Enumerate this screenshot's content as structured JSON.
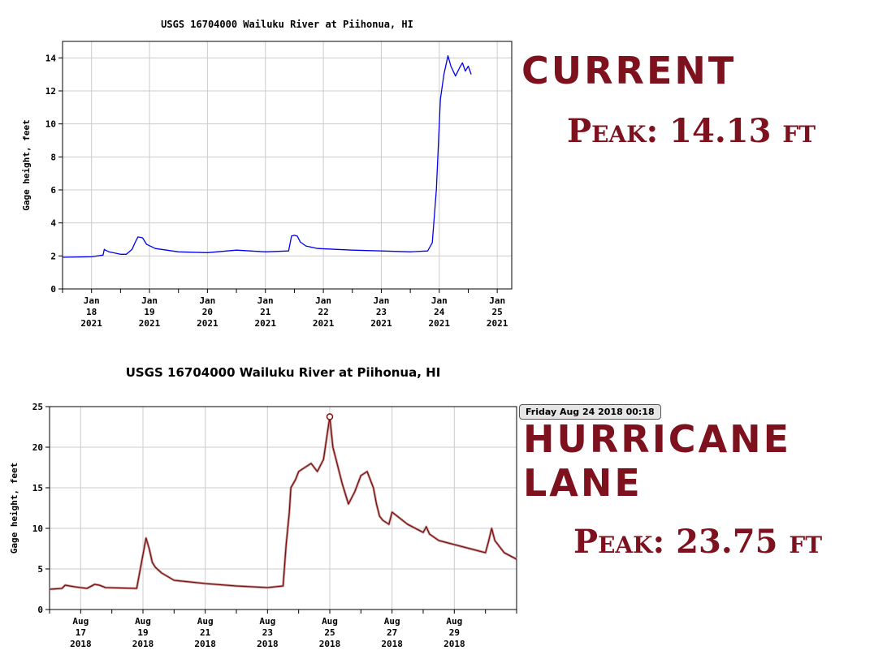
{
  "chart_data": [
    {
      "type": "line",
      "title": "USGS 16704000 Wailuku River at Piihonua, HI",
      "ylabel": "Gage height, feet",
      "ylim": [
        0,
        15
      ],
      "yticks": [
        0,
        2,
        4,
        6,
        8,
        10,
        12,
        14
      ],
      "xlim": [
        0,
        7.75
      ],
      "x_tick_labels": [
        [
          "Jan",
          "18",
          "2021"
        ],
        [
          "Jan",
          "19",
          "2021"
        ],
        [
          "Jan",
          "20",
          "2021"
        ],
        [
          "Jan",
          "21",
          "2021"
        ],
        [
          "Jan",
          "22",
          "2021"
        ],
        [
          "Jan",
          "23",
          "2021"
        ],
        [
          "Jan",
          "24",
          "2021"
        ],
        [
          "Jan",
          "25",
          "2021"
        ]
      ],
      "grid": true,
      "color": "#0000ee",
      "series": [
        {
          "x": [
            0.0,
            0.5,
            0.7,
            0.72,
            0.74,
            0.8,
            1.0,
            1.1,
            1.2,
            1.25,
            1.3,
            1.38,
            1.45,
            1.6,
            2.0,
            2.5,
            3.0,
            3.5,
            3.9,
            3.95,
            4.0,
            4.05,
            4.1,
            4.2,
            4.4,
            5.0,
            5.5,
            6.0,
            6.3,
            6.38,
            6.45,
            6.52,
            6.58,
            6.65,
            6.7,
            6.78,
            6.85,
            6.9,
            6.95,
            7.0,
            7.05
          ],
          "y": [
            1.92,
            1.95,
            2.05,
            2.4,
            2.35,
            2.25,
            2.1,
            2.1,
            2.4,
            2.8,
            3.15,
            3.1,
            2.7,
            2.45,
            2.25,
            2.2,
            2.35,
            2.25,
            2.3,
            3.2,
            3.25,
            3.2,
            2.85,
            2.6,
            2.45,
            2.35,
            2.3,
            2.25,
            2.3,
            2.8,
            6.0,
            11.5,
            13.0,
            14.13,
            13.5,
            12.9,
            13.4,
            13.7,
            13.2,
            13.5,
            13.0
          ]
        }
      ]
    },
    {
      "type": "line",
      "title": "USGS 16704000 Wailuku River at Piihonua, HI",
      "ylabel": "Gage height, feet",
      "ylim": [
        0,
        25
      ],
      "yticks": [
        0,
        5,
        10,
        15,
        20,
        25
      ],
      "xlim": [
        0,
        15.0
      ],
      "x_tick_labels": [
        [
          "Aug",
          "17",
          "2018"
        ],
        [
          "Aug",
          "19",
          "2018"
        ],
        [
          "Aug",
          "21",
          "2018"
        ],
        [
          "Aug",
          "23",
          "2018"
        ],
        [
          "Aug",
          "25",
          "2018"
        ],
        [
          "Aug",
          "27",
          "2018"
        ],
        [
          "Aug",
          "29",
          "2018"
        ]
      ],
      "grid": true,
      "color": "#7a0f0f",
      "series": [
        {
          "x": [
            0.0,
            0.4,
            0.5,
            0.8,
            1.2,
            1.45,
            1.6,
            1.8,
            2.8,
            3.1,
            3.2,
            3.3,
            3.4,
            3.6,
            4.0,
            5.0,
            6.0,
            7.0,
            7.5,
            7.6,
            7.7,
            7.75,
            7.9,
            8.0,
            8.2,
            8.4,
            8.6,
            8.8,
            9.0,
            9.1,
            9.2,
            9.3,
            9.4,
            9.6,
            9.8,
            10.0,
            10.2,
            10.4,
            10.5,
            10.6,
            10.7,
            10.9,
            11.0,
            11.5,
            12.0,
            12.1,
            12.2,
            12.5,
            13.0,
            13.5,
            14.0,
            14.1,
            14.2,
            14.3,
            14.6,
            15.0
          ],
          "y": [
            2.5,
            2.6,
            3.0,
            2.8,
            2.6,
            3.1,
            3.0,
            2.7,
            2.6,
            8.8,
            7.5,
            5.8,
            5.2,
            4.5,
            3.6,
            3.2,
            2.9,
            2.7,
            2.9,
            8.0,
            12.0,
            15.0,
            16.0,
            17.0,
            17.5,
            18.0,
            17.0,
            18.5,
            23.75,
            20.0,
            18.5,
            17.0,
            15.5,
            13.0,
            14.5,
            16.5,
            17.0,
            15.0,
            13.0,
            11.5,
            11.0,
            10.5,
            12.0,
            10.5,
            9.5,
            10.2,
            9.3,
            8.5,
            8.0,
            7.5,
            7.0,
            8.4,
            10.0,
            8.5,
            7.0,
            6.2
          ]
        }
      ],
      "marker_point": {
        "x": 9.0,
        "y": 23.75
      },
      "tooltip": "Friday Aug 24 2018 00:18"
    }
  ],
  "annotations": {
    "current_label": "Current",
    "current_peak": "Peak: 14.13 ft",
    "hurricane_line1": "Hurricane",
    "hurricane_line2": "Lane",
    "hurricane_peak": "Peak: 23.75 ft"
  }
}
